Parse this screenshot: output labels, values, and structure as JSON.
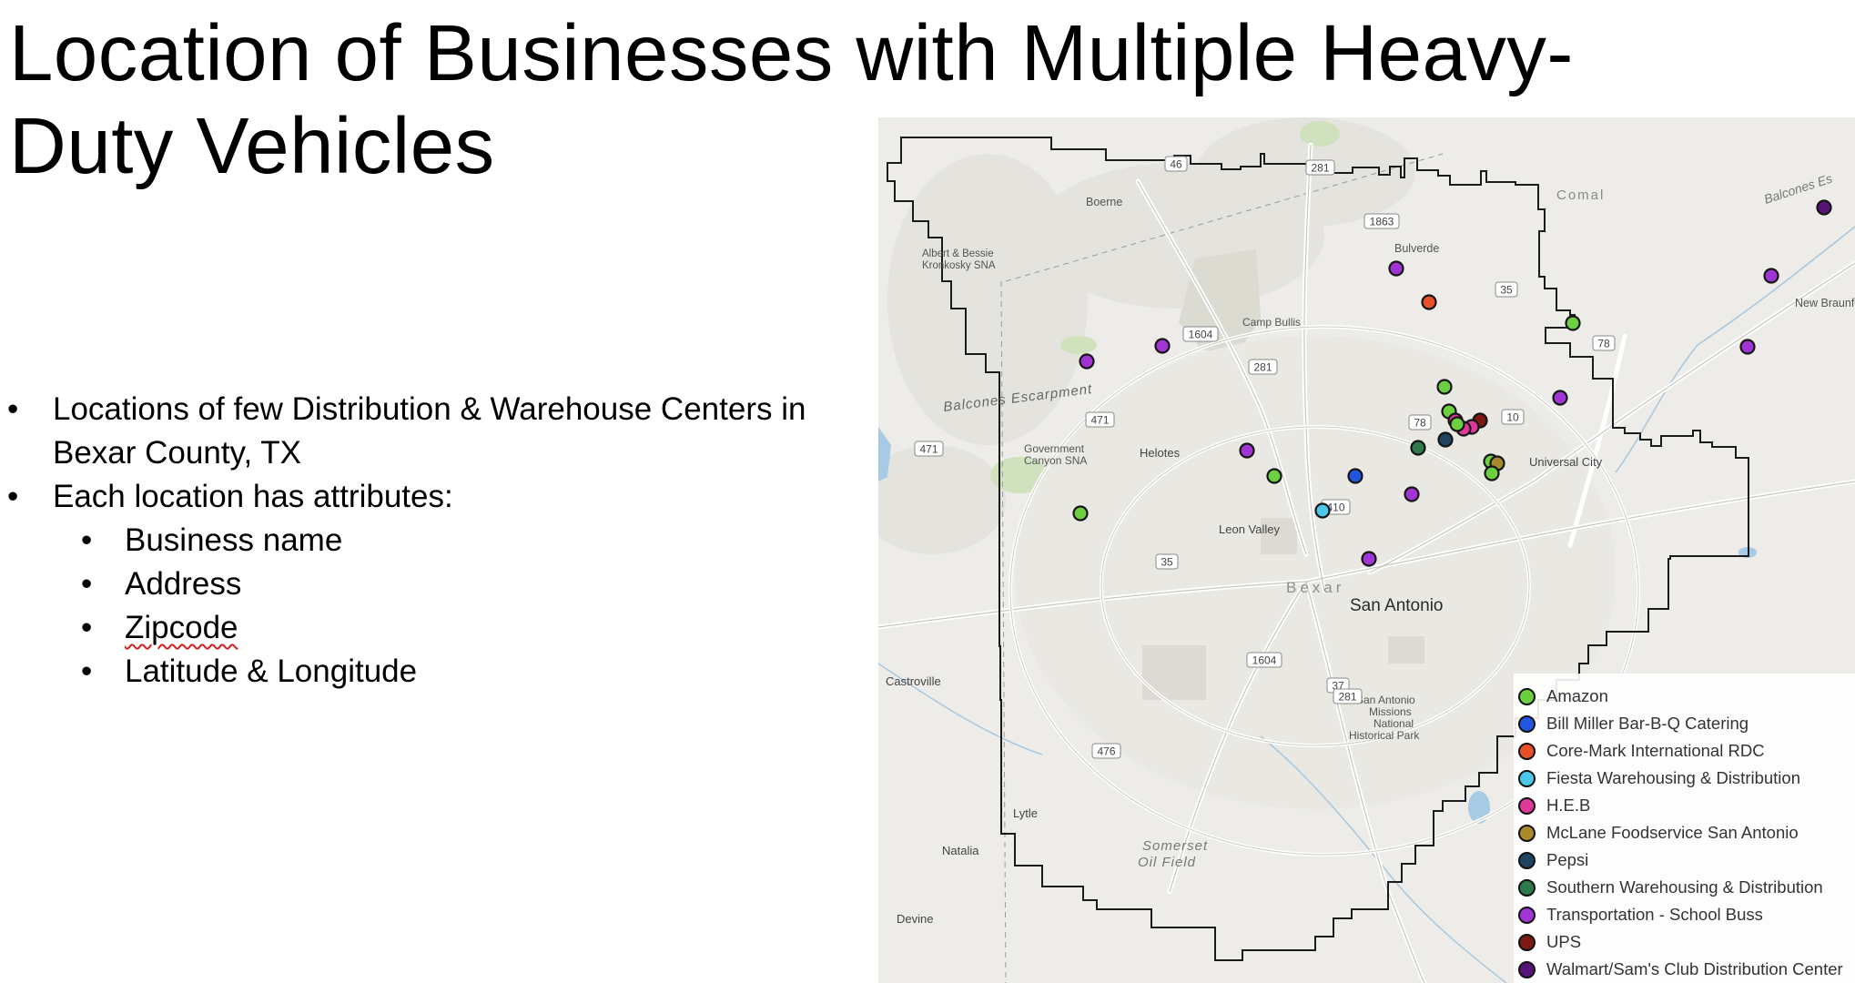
{
  "slide": {
    "title": "Location of Businesses with Multiple Heavy-Duty Vehicles",
    "bullets": [
      "Locations of few Distribution & Warehouse Centers in Bexar County, TX",
      "Each location has attributes:"
    ],
    "sub_bullets": [
      "Business name",
      "Address",
      "Zipcode",
      "Latitude & Longitude"
    ]
  },
  "map": {
    "county_label": "Bexar",
    "city_label": "San Antonio",
    "place_labels": [
      {
        "text": "Boerne"
      },
      {
        "text": "Bulverde"
      },
      {
        "text": "Comal"
      },
      {
        "text": "Balcones Es"
      },
      {
        "text": "New Braunfels"
      },
      {
        "text": "Albert & Bessie"
      },
      {
        "text": "Kronkosky SNA"
      },
      {
        "text": "Camp Bullis"
      },
      {
        "text": "Balcones Escarpment"
      },
      {
        "text": "Government"
      },
      {
        "text": "Canyon SNA"
      },
      {
        "text": "Helotes"
      },
      {
        "text": "Universal City"
      },
      {
        "text": "Leon Valley"
      },
      {
        "text": "Castroville"
      },
      {
        "text": "San Antonio"
      },
      {
        "text": "Missions"
      },
      {
        "text": "National"
      },
      {
        "text": "Historical Park"
      },
      {
        "text": "Lytle"
      },
      {
        "text": "Somerset"
      },
      {
        "text": "Oil Field"
      },
      {
        "text": "Natalia"
      },
      {
        "text": "Devine"
      }
    ],
    "shields": [
      "46",
      "281",
      "1863",
      "35",
      "1604",
      "281",
      "78",
      "471",
      "10",
      "78",
      "471",
      "410",
      "35",
      "1604",
      "37",
      "281",
      "476"
    ],
    "colors": {
      "Amazon": "#6ccf3f",
      "Bill Miller": "#2255e0",
      "Core-Mark": "#e8502a",
      "Fiesta": "#49c8ea",
      "HEB": "#e0389a",
      "McLane": "#a88a28",
      "Pepsi": "#1f4460",
      "Southern": "#2f7a4a",
      "School Buss": "#a234d6",
      "UPS": "#7a1a12",
      "Walmart": "#55147a"
    },
    "points": [
      {
        "cat": "School Buss"
      },
      {
        "cat": "Core-Mark"
      },
      {
        "cat": "Amazon"
      },
      {
        "cat": "Walmart"
      },
      {
        "cat": "School Buss"
      },
      {
        "cat": "School Buss"
      },
      {
        "cat": "School Buss"
      },
      {
        "cat": "School Buss"
      },
      {
        "cat": "Amazon"
      },
      {
        "cat": "School Buss"
      },
      {
        "cat": "Amazon"
      },
      {
        "cat": "HEB"
      },
      {
        "cat": "UPS"
      },
      {
        "cat": "HEB"
      },
      {
        "cat": "HEB"
      },
      {
        "cat": "Amazon"
      },
      {
        "cat": "Pepsi"
      },
      {
        "cat": "Southern"
      },
      {
        "cat": "School Buss"
      },
      {
        "cat": "Amazon"
      },
      {
        "cat": "Bill Miller"
      },
      {
        "cat": "McLane"
      },
      {
        "cat": "Amazon"
      },
      {
        "cat": "Amazon"
      },
      {
        "cat": "School Buss"
      },
      {
        "cat": "Amazon"
      },
      {
        "cat": "Fiesta"
      },
      {
        "cat": "School Buss"
      }
    ]
  },
  "legend": {
    "items": [
      {
        "label": "Amazon",
        "color": "#6ccf3f"
      },
      {
        "label": "Bill Miller Bar-B-Q Catering",
        "color": "#2255e0"
      },
      {
        "label": "Core-Mark International RDC",
        "color": "#e8502a"
      },
      {
        "label": "Fiesta Warehousing & Distribution",
        "color": "#49c8ea"
      },
      {
        "label": "H.E.B",
        "color": "#e0389a"
      },
      {
        "label": "McLane Foodservice San Antonio",
        "color": "#a88a28"
      },
      {
        "label": "Pepsi",
        "color": "#1f4460"
      },
      {
        "label": "Southern Warehousing & Distribution",
        "color": "#2f7a4a"
      },
      {
        "label": "Transportation - School Buss",
        "color": "#a234d6"
      },
      {
        "label": "UPS",
        "color": "#7a1a12"
      },
      {
        "label": "Walmart/Sam's Club Distribution Center",
        "color": "#55147a"
      }
    ]
  }
}
